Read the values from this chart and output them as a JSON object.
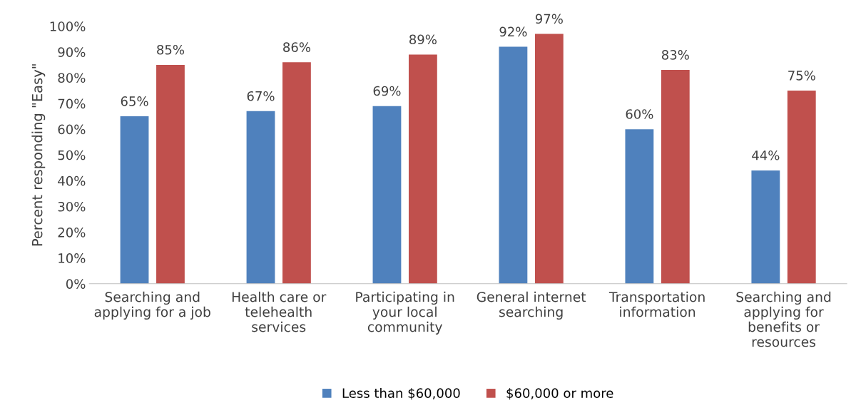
{
  "chart_data": {
    "type": "bar",
    "ylabel": "Percent responding \"Easy\"",
    "categories": [
      "Searching and\napplying for a job",
      "Health care or\ntelehealth\nservices",
      "Participating in\nyour local\ncommunity",
      "General internet\nsearching",
      "Transportation\ninformation",
      "Searching and\napplying for\nbenefits or\nresources"
    ],
    "series": [
      {
        "name": "Less than $60,000",
        "color": "#4f81bd",
        "values": [
          65,
          67,
          69,
          92,
          60,
          44
        ],
        "value_labels": [
          "65%",
          "67%",
          "69%",
          "92%",
          "60%",
          "44%"
        ]
      },
      {
        "name": "$60,000 or more",
        "color": "#c0504d",
        "values": [
          85,
          86,
          89,
          97,
          83,
          75
        ],
        "value_labels": [
          "85%",
          "86%",
          "89%",
          "97%",
          "83%",
          "75%"
        ]
      }
    ],
    "ylim": [
      0,
      100
    ],
    "yticks": [
      {
        "value": 0,
        "label": "0%"
      },
      {
        "value": 10,
        "label": "10%"
      },
      {
        "value": 20,
        "label": "20%"
      },
      {
        "value": 30,
        "label": "30%"
      },
      {
        "value": 40,
        "label": "40%"
      },
      {
        "value": 50,
        "label": "50%"
      },
      {
        "value": 60,
        "label": "60%"
      },
      {
        "value": 70,
        "label": "70%"
      },
      {
        "value": 80,
        "label": "80%"
      },
      {
        "value": 90,
        "label": "90%"
      },
      {
        "value": 100,
        "label": "100%"
      }
    ],
    "grid": false,
    "legend": "bottom"
  }
}
